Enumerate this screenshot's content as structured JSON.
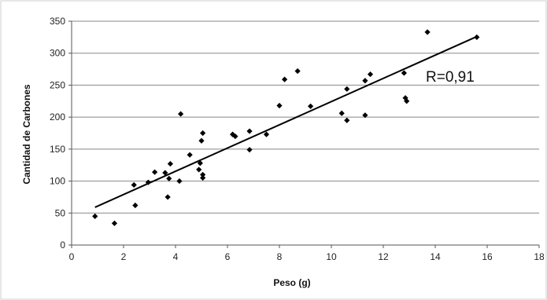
{
  "chart_data": {
    "type": "scatter",
    "title": "",
    "xlabel": "Peso (g)",
    "ylabel": "Cantidad de Carbones",
    "xlim": [
      0,
      18
    ],
    "ylim": [
      0,
      350
    ],
    "xticks": [
      0,
      2,
      4,
      6,
      8,
      10,
      12,
      14,
      16,
      18
    ],
    "yticks": [
      0,
      50,
      100,
      150,
      200,
      250,
      300,
      350
    ],
    "grid": "horizontal",
    "legend": "none",
    "annotation": "R=0,91",
    "colors": {
      "marker": "#000000",
      "line": "#000000",
      "grid": "#888888",
      "plot_background": "#ffffff"
    },
    "series": [
      {
        "points": [
          [
            0.9,
            45
          ],
          [
            1.65,
            34
          ],
          [
            2.4,
            94
          ],
          [
            2.45,
            62
          ],
          [
            2.95,
            98
          ],
          [
            3.2,
            114
          ],
          [
            3.6,
            113
          ],
          [
            3.7,
            75
          ],
          [
            3.75,
            104
          ],
          [
            3.8,
            127
          ],
          [
            4.15,
            100
          ],
          [
            4.2,
            205
          ],
          [
            4.55,
            141
          ],
          [
            4.9,
            118
          ],
          [
            4.95,
            128
          ],
          [
            5.0,
            163
          ],
          [
            5.05,
            175
          ],
          [
            5.05,
            110
          ],
          [
            5.05,
            105
          ],
          [
            6.2,
            173
          ],
          [
            6.3,
            170
          ],
          [
            6.85,
            178
          ],
          [
            6.85,
            149
          ],
          [
            7.5,
            173
          ],
          [
            8.0,
            218
          ],
          [
            8.2,
            259
          ],
          [
            8.7,
            272
          ],
          [
            9.2,
            217
          ],
          [
            10.4,
            206
          ],
          [
            10.6,
            244
          ],
          [
            10.6,
            195
          ],
          [
            11.3,
            257
          ],
          [
            11.3,
            203
          ],
          [
            11.5,
            267
          ],
          [
            12.8,
            269
          ],
          [
            12.85,
            230
          ],
          [
            12.9,
            225
          ],
          [
            13.7,
            333
          ],
          [
            15.6,
            325
          ]
        ]
      }
    ],
    "trendline": {
      "x": [
        0.9,
        15.6
      ],
      "y": [
        59,
        326
      ]
    }
  }
}
